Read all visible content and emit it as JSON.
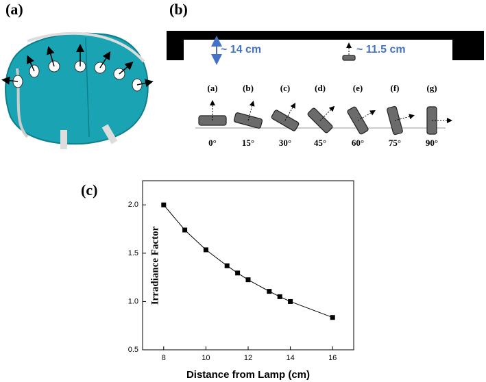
{
  "figure": {
    "panel_a": "(a)",
    "panel_b": "(b)",
    "panel_c": "(c)",
    "height_14": "~ 14 cm",
    "height_11_5": "~ 11.5 cm",
    "orientations": [
      "(a)",
      "(b)",
      "(c)",
      "(d)",
      "(e)",
      "(f)",
      "(g)"
    ],
    "angles": [
      "0°",
      "15°",
      "30°",
      "45°",
      "60°",
      "75°",
      "90°"
    ]
  },
  "chart_data": {
    "type": "line",
    "x_label": "Distance from Lamp (cm)",
    "y_label": "Irradiance Factor",
    "x": [
      8,
      9,
      10,
      11,
      11.5,
      12,
      13,
      13.5,
      14,
      16
    ],
    "values": [
      2.0,
      1.74,
      1.535,
      1.37,
      1.295,
      1.225,
      1.105,
      1.05,
      1.0,
      0.835
    ],
    "color": "#000000",
    "xlim": [
      7,
      17
    ],
    "ylim": [
      0.5,
      2.25
    ],
    "xticks": [
      8,
      10,
      12,
      14,
      16
    ],
    "yticks": [
      {
        "value": 2,
        "label": "2.0"
      },
      {
        "value": 1.5,
        "label": "1.5"
      },
      {
        "value": 1,
        "label": "1.0"
      },
      {
        "value": 0.5,
        "label": "0.5"
      }
    ]
  }
}
